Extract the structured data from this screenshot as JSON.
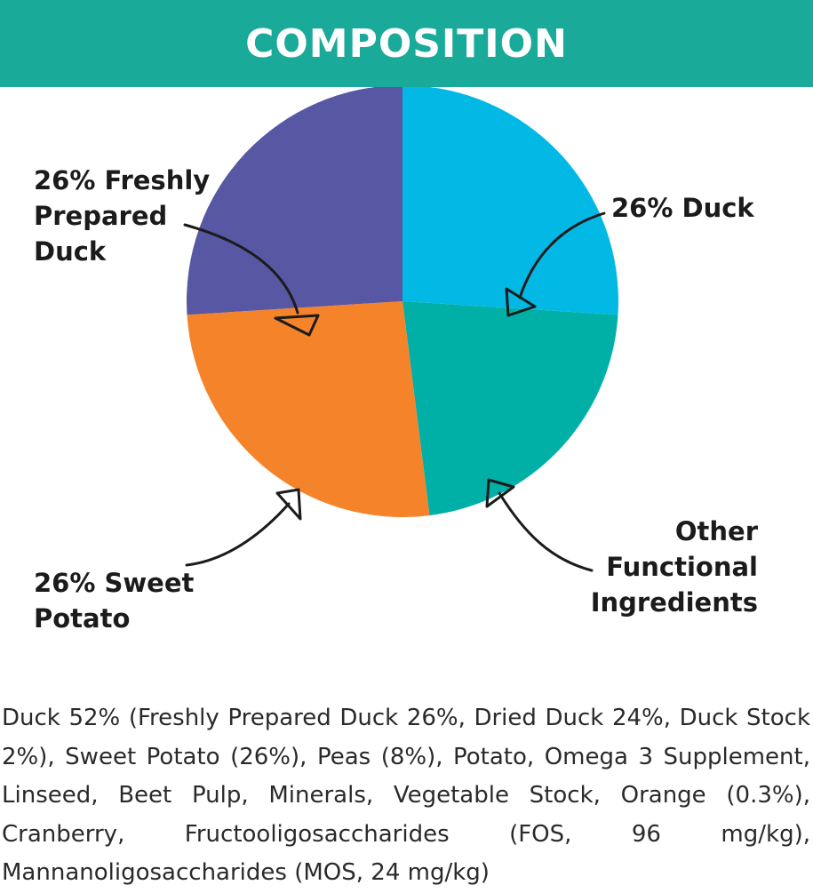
{
  "header": {
    "title": "COMPOSITION",
    "background": "#1aaa9a"
  },
  "chart_data": {
    "type": "pie",
    "title": "",
    "slices": [
      {
        "label_lines": [
          "26% Duck"
        ],
        "value": 26,
        "color": "#02b9e6"
      },
      {
        "label_lines": [
          "Other",
          "Functional",
          "Ingredients"
        ],
        "value": 22,
        "color": "#00b0a7"
      },
      {
        "label_lines": [
          "26% Sweet",
          "Potato"
        ],
        "value": 26,
        "color": "#f4832a"
      },
      {
        "label_lines": [
          "26% Freshly",
          "Prepared",
          "Duck"
        ],
        "value": 26,
        "color": "#5857a4"
      }
    ],
    "legend": "none"
  },
  "composition": {
    "text": "Duck 52% (Freshly Prepared Duck 26%, Dried Duck 24%, Duck Stock 2%), Sweet Potato (26%), Peas (8%), Potato, Omega 3 Supplement, Linseed, Beet Pulp, Minerals, Vegetable Stock, Orange (0.3%), Cranberry, Fructooligosaccharides (FOS, 96 mg/kg), Mannanoligosaccharides (MOS, 24 mg/kg)"
  }
}
